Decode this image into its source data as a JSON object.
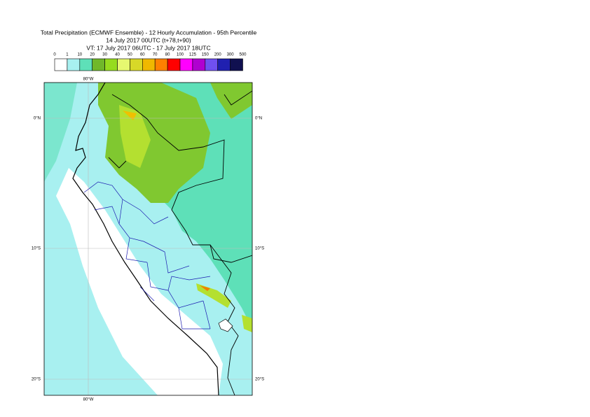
{
  "title": [
    "Total Precipitation (ECMWF Ensemble) - 12 Hourly Accumulation - 95th Percentile",
    "14 July 2017 00UTC (t+78,t+90)",
    "VT: 17 July 2017 06UTC - 17 July 2017 18UTC"
  ],
  "legend": {
    "labels": [
      0,
      1,
      10,
      20,
      30,
      40,
      50,
      60,
      70,
      80,
      100,
      125,
      150,
      200,
      300,
      500
    ],
    "colors": [
      "#ffffff",
      "#a8f0f0",
      "#5ee0b8",
      "#70b82a",
      "#96dc1e",
      "#e6f870",
      "#d8d828",
      "#f0b800",
      "#ff8000",
      "#ff0000",
      "#ff00ff",
      "#b000d0",
      "#7050f0",
      "#2020b0",
      "#101050"
    ]
  },
  "axes": {
    "longitude": [
      "80°W"
    ],
    "latitude": [
      "0°N",
      "10°S",
      "20°S"
    ]
  }
}
